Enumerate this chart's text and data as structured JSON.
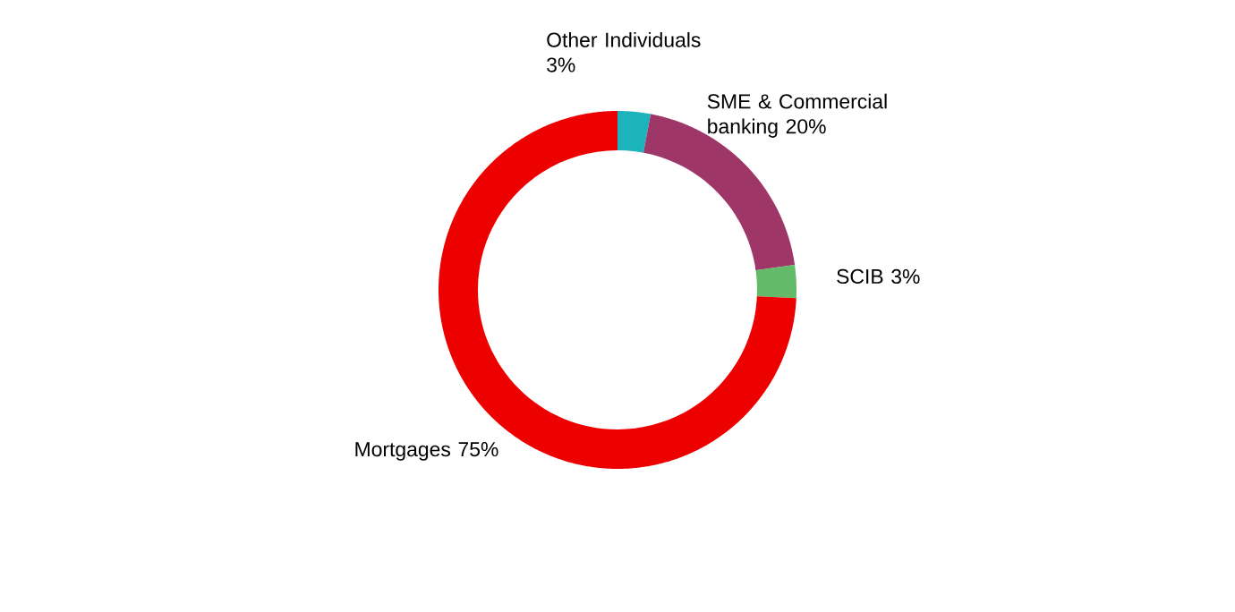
{
  "chart_data": {
    "type": "donut",
    "categories": [
      "Other Individuals",
      "SME & Commercial banking",
      "SCIB",
      "Mortgages"
    ],
    "values": [
      3,
      20,
      3,
      75
    ],
    "value_labels": [
      "3%",
      "20%",
      "3%",
      "75%"
    ],
    "colors": [
      "#1bb3bc",
      "#9e3667",
      "#63ba68",
      "#ec0000"
    ]
  }
}
